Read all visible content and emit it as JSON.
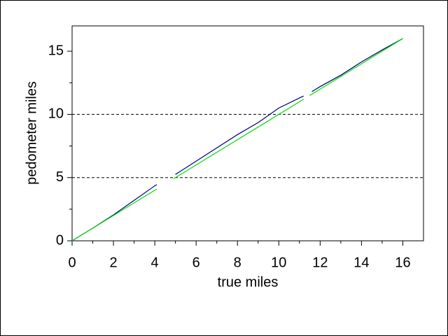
{
  "chart_data": {
    "type": "line",
    "xlabel": "true miles",
    "ylabel": "pedometer miles",
    "xlim": [
      0,
      17
    ],
    "ylim": [
      0,
      17
    ],
    "xticks": [
      0,
      2,
      4,
      6,
      8,
      10,
      12,
      14,
      16
    ],
    "xminor": [
      1,
      3,
      5,
      7,
      9,
      11,
      13,
      15
    ],
    "yticks": [
      0,
      5,
      10,
      15
    ],
    "yminor": [
      2.5,
      7.5,
      12.5
    ],
    "ygrid": [
      5,
      10
    ],
    "series": [
      {
        "color": "#000080",
        "x": [
          0,
          1,
          2,
          3,
          4,
          4.1,
          null,
          5,
          6,
          7,
          8,
          9,
          10,
          11,
          11.2,
          null,
          11.6,
          12,
          13,
          14,
          15,
          16
        ],
        "values": [
          0,
          1.0,
          2.05,
          3.2,
          4.35,
          4.45,
          null,
          5.25,
          6.3,
          7.35,
          8.4,
          9.35,
          10.5,
          11.3,
          11.45,
          null,
          11.8,
          12.2,
          13.1,
          14.15,
          15.1,
          16.0
        ]
      },
      {
        "color": "#00e000",
        "x": [
          0,
          4.1,
          null,
          4.9,
          11.2,
          null,
          11.5,
          16
        ],
        "values": [
          0,
          4.1,
          null,
          4.9,
          11.2,
          null,
          11.5,
          16
        ]
      }
    ]
  }
}
